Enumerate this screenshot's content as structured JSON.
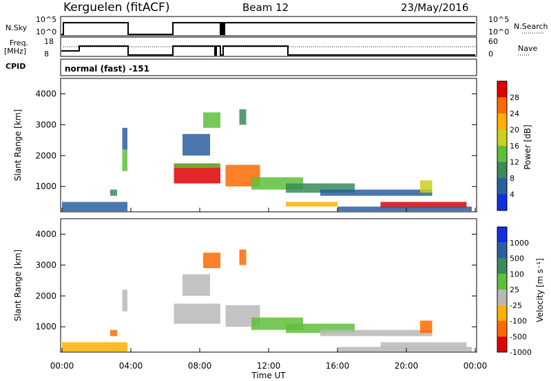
{
  "header": {
    "station": "Kerguelen (fitACF)",
    "beam": "Beam 12",
    "date": "23/May/2016"
  },
  "panels": {
    "nsky_label": "N.Sky",
    "nsky_ticks": [
      "10^5",
      "10^0"
    ],
    "nsearch_label": "N.Search",
    "nsearch_ticks": [
      "10^5",
      "10^0"
    ],
    "freq_label_1": "Freq.",
    "freq_label_2": "[MHz]",
    "freq_ticks": [
      "18",
      "8"
    ],
    "nave_label": "Nave",
    "nave_ticks": [
      "60",
      "0"
    ],
    "cpid_label": "CPID",
    "cpid_value": "normal (fast) -151"
  },
  "chart_data": [
    {
      "type": "heatmap",
      "name": "power",
      "ylabel": "Slant Range [km]",
      "xlabel": "Time UT",
      "ylim": [
        180,
        4500
      ],
      "yticks": [
        "1000",
        "2000",
        "3000",
        "4000"
      ],
      "xticks": [
        "00:00",
        "04:00",
        "08:00",
        "12:00",
        "16:00",
        "20:00",
        "00:00"
      ],
      "colorbar": {
        "label": "Power [dB]",
        "ticks": [
          "28",
          "24",
          "20",
          "16",
          "12",
          "8",
          "4"
        ],
        "colors": [
          "#e00000",
          "#ff6a00",
          "#ffb000",
          "#c8d020",
          "#5fbf3a",
          "#3a8a5a",
          "#2a5fa0",
          "#1030e0"
        ]
      },
      "blobs": [
        {
          "t0": 0.0,
          "t1": 3.8,
          "r0": 200,
          "r1": 500,
          "c": 6
        },
        {
          "t0": 2.8,
          "t1": 3.2,
          "r0": 700,
          "r1": 900,
          "c": 5
        },
        {
          "t0": 3.5,
          "t1": 3.8,
          "r0": 1500,
          "r1": 2200,
          "c": 4
        },
        {
          "t0": 3.5,
          "t1": 3.8,
          "r0": 2200,
          "r1": 2900,
          "c": 6
        },
        {
          "t0": 6.5,
          "t1": 9.2,
          "r0": 1100,
          "r1": 1750,
          "c": 0
        },
        {
          "t0": 6.5,
          "t1": 9.2,
          "r0": 1600,
          "r1": 1750,
          "c": 4
        },
        {
          "t0": 9.5,
          "t1": 11.5,
          "r0": 1000,
          "r1": 1700,
          "c": 1
        },
        {
          "t0": 11.0,
          "t1": 14.0,
          "r0": 900,
          "r1": 1300,
          "c": 4
        },
        {
          "t0": 13.0,
          "t1": 17.0,
          "r0": 800,
          "r1": 1100,
          "c": 5
        },
        {
          "t0": 15.0,
          "t1": 21.5,
          "r0": 700,
          "r1": 900,
          "c": 6
        },
        {
          "t0": 13.0,
          "t1": 16.0,
          "r0": 350,
          "r1": 500,
          "c": 2
        },
        {
          "t0": 18.5,
          "t1": 23.5,
          "r0": 300,
          "r1": 500,
          "c": 0
        },
        {
          "t0": 16.0,
          "t1": 23.8,
          "r0": 200,
          "r1": 350,
          "c": 6
        },
        {
          "t0": 8.2,
          "t1": 9.2,
          "r0": 2900,
          "r1": 3400,
          "c": 4
        },
        {
          "t0": 10.3,
          "t1": 10.7,
          "r0": 3000,
          "r1": 3500,
          "c": 5
        },
        {
          "t0": 7.0,
          "t1": 8.6,
          "r0": 2000,
          "r1": 2700,
          "c": 6
        },
        {
          "t0": 20.8,
          "t1": 21.5,
          "r0": 800,
          "r1": 1200,
          "c": 3
        }
      ]
    },
    {
      "type": "heatmap",
      "name": "velocity",
      "ylabel": "Slant Range [km]",
      "xlabel": "Time UT",
      "ylim": [
        180,
        4500
      ],
      "yticks": [
        "1000",
        "2000",
        "3000",
        "4000"
      ],
      "xticks": [
        "00:00",
        "04:00",
        "08:00",
        "12:00",
        "16:00",
        "20:00",
        "00:00"
      ],
      "colorbar": {
        "label": "Velocity [m s⁻¹]",
        "ticks": [
          "1000",
          "500",
          "100",
          "25",
          "-25",
          "-100",
          "-500",
          "-1000"
        ],
        "colors": [
          "#1030e0",
          "#2a5fa0",
          "#3a8a5a",
          "#5fbf3a",
          "#b8b8b8",
          "#ffb000",
          "#ff6a00",
          "#e00000"
        ]
      },
      "blobs": [
        {
          "t0": 0.0,
          "t1": 3.8,
          "r0": 200,
          "r1": 500,
          "c": 5
        },
        {
          "t0": 2.8,
          "t1": 3.2,
          "r0": 700,
          "r1": 900,
          "c": 6
        },
        {
          "t0": 3.5,
          "t1": 3.8,
          "r0": 1500,
          "r1": 2200,
          "c": 4
        },
        {
          "t0": 6.5,
          "t1": 9.2,
          "r0": 1100,
          "r1": 1750,
          "c": 4
        },
        {
          "t0": 9.5,
          "t1": 11.5,
          "r0": 1000,
          "r1": 1700,
          "c": 4
        },
        {
          "t0": 11.0,
          "t1": 14.0,
          "r0": 900,
          "r1": 1300,
          "c": 3
        },
        {
          "t0": 13.0,
          "t1": 17.0,
          "r0": 800,
          "r1": 1100,
          "c": 3
        },
        {
          "t0": 15.0,
          "t1": 21.5,
          "r0": 700,
          "r1": 900,
          "c": 4
        },
        {
          "t0": 18.5,
          "t1": 23.5,
          "r0": 300,
          "r1": 500,
          "c": 4
        },
        {
          "t0": 16.0,
          "t1": 23.8,
          "r0": 200,
          "r1": 350,
          "c": 4
        },
        {
          "t0": 8.2,
          "t1": 9.2,
          "r0": 2900,
          "r1": 3400,
          "c": 6
        },
        {
          "t0": 10.3,
          "t1": 10.7,
          "r0": 3000,
          "r1": 3500,
          "c": 6
        },
        {
          "t0": 7.0,
          "t1": 8.6,
          "r0": 2000,
          "r1": 2700,
          "c": 4
        },
        {
          "t0": 20.8,
          "t1": 21.5,
          "r0": 800,
          "r1": 1200,
          "c": 6
        }
      ]
    }
  ]
}
